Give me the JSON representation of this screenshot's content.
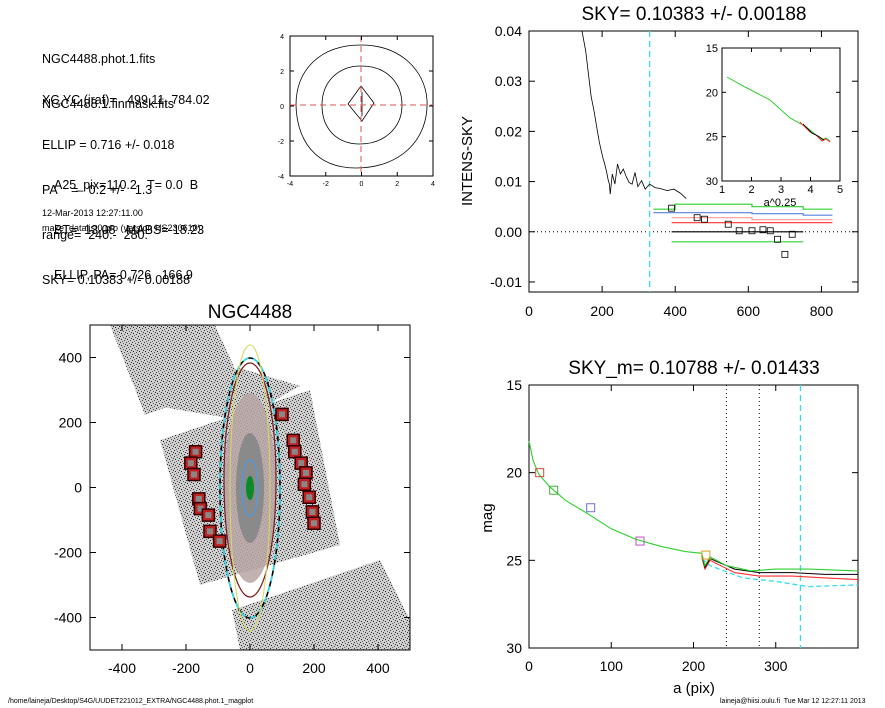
{
  "info": {
    "lines1": [
      "NGC4488.phot.1.fits",
      "NGC4488.1.finmask.fits"
    ],
    "lines2": [
      "XC,YC (iraf)=   499.11, 784.02",
      "ELLIP = 0.716 +/- 0.018",
      "PA    =   0.2 +/-   1.3",
      "range=  240.-  280.",
      "SKY= 0.10383 +/- 0.00188"
    ],
    "lines3": [
      "A25_pix=110.2   T= 0.0  B",
      "BT=  13.08   MABS=-18.23",
      "ELLIP, PA= 0.726   166.9"
    ],
    "date": "12-Mar-2013 12:27:11.00",
    "program": "make_datalist0.pro (version HS230610)"
  },
  "footer": {
    "path": "/home/laineja/Desktop/S4G/UUDET221012_EXTRA/NGC4488.phot.1_magplot",
    "stamp": "laineja@hiisi.oulu.fi  Tue Mar 12 12:27:11 2013"
  },
  "chart_data": [
    {
      "id": "contour",
      "type": "contour",
      "xticks": [
        "-4",
        "-2",
        "0",
        "2",
        "4"
      ],
      "yticks": [
        "4",
        "2",
        "0",
        "-2",
        "-4"
      ],
      "xlim": [
        -4,
        4
      ],
      "ylim": [
        -4,
        4
      ],
      "crosshair_color": "#e05050"
    },
    {
      "id": "image",
      "type": "image",
      "title": "NGC4488",
      "xticks": [
        "-400",
        "-200",
        "0",
        "200",
        "400"
      ],
      "yticks": [
        "400",
        "200",
        "0",
        "-200",
        "-400"
      ],
      "xlim": [
        -500,
        500
      ],
      "ylim": [
        -500,
        500
      ],
      "mask_boxes": [
        [
          -170,
          110
        ],
        [
          -185,
          75
        ],
        [
          -175,
          40
        ],
        [
          -160,
          -35
        ],
        [
          -155,
          -65
        ],
        [
          -130,
          -85
        ],
        [
          -125,
          -135
        ],
        [
          -95,
          -165
        ],
        [
          100,
          225
        ],
        [
          135,
          145
        ],
        [
          140,
          110
        ],
        [
          160,
          75
        ],
        [
          175,
          45
        ],
        [
          170,
          10
        ],
        [
          185,
          -30
        ],
        [
          195,
          -75
        ],
        [
          200,
          -110
        ]
      ]
    },
    {
      "id": "intens",
      "type": "line",
      "title": "SKY= 0.10383 +/- 0.00188",
      "ylabel": "INTENS-SKY",
      "xlim": [
        0,
        900
      ],
      "ylim": [
        -0.012,
        0.04
      ],
      "xticks": [
        "0",
        "200",
        "400",
        "600",
        "800"
      ],
      "yticks": [
        "0.04",
        "0.03",
        "0.02",
        "0.01",
        "0.00",
        "-0.01"
      ],
      "profile": [
        [
          145,
          0.04
        ],
        [
          155,
          0.036
        ],
        [
          160,
          0.033
        ],
        [
          165,
          0.03
        ],
        [
          170,
          0.027
        ],
        [
          178,
          0.024
        ],
        [
          185,
          0.021
        ],
        [
          192,
          0.018
        ],
        [
          198,
          0.016
        ],
        [
          203,
          0.0145
        ],
        [
          207,
          0.0135
        ],
        [
          212,
          0.012
        ],
        [
          216,
          0.0105
        ],
        [
          220,
          0.0095
        ],
        [
          222,
          0.0075
        ],
        [
          228,
          0.0115
        ],
        [
          235,
          0.0095
        ],
        [
          242,
          0.0135
        ],
        [
          250,
          0.0115
        ],
        [
          258,
          0.0125
        ],
        [
          266,
          0.011
        ],
        [
          274,
          0.0098
        ],
        [
          282,
          0.0095
        ],
        [
          290,
          0.0118
        ],
        [
          298,
          0.009
        ],
        [
          308,
          0.0102
        ],
        [
          318,
          0.0085
        ],
        [
          330,
          0.0095
        ],
        [
          345,
          0.0088
        ],
        [
          360,
          0.0086
        ],
        [
          378,
          0.0082
        ],
        [
          396,
          0.0085
        ],
        [
          414,
          0.0077
        ],
        [
          430,
          0.0066
        ]
      ],
      "squares": [
        [
          390,
          0.0047
        ],
        [
          460,
          0.0028
        ],
        [
          480,
          0.0025
        ],
        [
          545,
          0.0015
        ],
        [
          575,
          0.0002
        ],
        [
          610,
          0.0002
        ],
        [
          640,
          0.0004
        ],
        [
          660,
          0.0002
        ],
        [
          680,
          -0.0015
        ],
        [
          700,
          -0.0045
        ],
        [
          720,
          -0.0005
        ]
      ],
      "steps": [
        {
          "color": "#2fd12f",
          "pts": [
            [
              340,
              0.0045
            ],
            [
              400,
              0.0045
            ],
            [
              400,
              0.0055
            ],
            [
              610,
              0.0055
            ],
            [
              610,
              0.005
            ],
            [
              750,
              0.005
            ],
            [
              750,
              0.0045
            ],
            [
              830,
              0.0045
            ]
          ]
        },
        {
          "color": "#5580e0",
          "pts": [
            [
              340,
              0.0038
            ],
            [
              610,
              0.0038
            ],
            [
              610,
              0.0036
            ],
            [
              750,
              0.0036
            ],
            [
              750,
              0.0033
            ],
            [
              830,
              0.0033
            ]
          ]
        },
        {
          "color": "#ff9a9a",
          "pts": [
            [
              390,
              0.0028
            ],
            [
              610,
              0.0028
            ],
            [
              610,
              0.0024
            ],
            [
              830,
              0.0024
            ]
          ]
        },
        {
          "color": "#ff3030",
          "pts": [
            [
              390,
              0.0018
            ],
            [
              830,
              0.0018
            ]
          ]
        },
        {
          "color": "#000000",
          "pts": [
            [
              390,
              0.0
            ],
            [
              750,
              0.0
            ]
          ]
        },
        {
          "color": "#2fd12f",
          "pts": [
            [
              390,
              -0.002
            ],
            [
              750,
              -0.002
            ]
          ]
        }
      ],
      "vline": 330,
      "vline_color": "#33ddee",
      "inset": {
        "xlabel": "a^0.25",
        "xlim": [
          1,
          5
        ],
        "ylim": [
          15,
          30
        ],
        "xticks": [
          "1",
          "2",
          "3",
          "4",
          "5"
        ],
        "yticks": [
          "15",
          "20",
          "25",
          "30"
        ]
      }
    },
    {
      "id": "mag",
      "type": "line",
      "title": "SKY_m=  0.10788 +/- 0.01433",
      "xlabel": "a (pix)",
      "ylabel": "mag",
      "xlim": [
        0,
        400
      ],
      "ylim": [
        15,
        30
      ],
      "xticks": [
        "0",
        "100",
        "200",
        "300"
      ],
      "yticks": [
        "15",
        "20",
        "25",
        "30"
      ],
      "vlines": [
        240,
        280
      ],
      "cyan_vline": 330,
      "green": [
        [
          0,
          18.2
        ],
        [
          5,
          19.3
        ],
        [
          12,
          20.1
        ],
        [
          25,
          20.8
        ],
        [
          45,
          21.6
        ],
        [
          70,
          22.3
        ],
        [
          100,
          23.2
        ],
        [
          130,
          23.8
        ],
        [
          160,
          24.2
        ],
        [
          190,
          24.5
        ],
        [
          210,
          24.6
        ],
        [
          214,
          25.3
        ],
        [
          220,
          24.8
        ],
        [
          240,
          25.3
        ],
        [
          270,
          25.6
        ],
        [
          300,
          25.5
        ],
        [
          340,
          25.5
        ],
        [
          400,
          25.6
        ]
      ],
      "red": [
        [
          210,
          24.8
        ],
        [
          214,
          25.5
        ],
        [
          220,
          25.0
        ],
        [
          250,
          25.7
        ],
        [
          280,
          25.9
        ],
        [
          320,
          25.9
        ],
        [
          360,
          26.0
        ],
        [
          400,
          26.1
        ]
      ],
      "black": [
        [
          210,
          24.7
        ],
        [
          214,
          25.4
        ],
        [
          220,
          24.9
        ],
        [
          250,
          25.5
        ],
        [
          280,
          25.7
        ],
        [
          320,
          25.7
        ],
        [
          360,
          25.8
        ],
        [
          400,
          25.8
        ]
      ],
      "cyan": [
        [
          210,
          24.9
        ],
        [
          220,
          25.3
        ],
        [
          260,
          26.0
        ],
        [
          300,
          26.2
        ],
        [
          340,
          26.5
        ],
        [
          400,
          26.4
        ]
      ],
      "markers": [
        {
          "x": 13,
          "y": 20.0,
          "color": "#e04040"
        },
        {
          "x": 30,
          "y": 21.0,
          "color": "#40b040"
        },
        {
          "x": 75,
          "y": 22.0,
          "color": "#7070e0"
        },
        {
          "x": 135,
          "y": 23.9,
          "color": "#c050c0"
        },
        {
          "x": 215,
          "y": 24.7,
          "color": "#e0a020"
        }
      ]
    }
  ]
}
